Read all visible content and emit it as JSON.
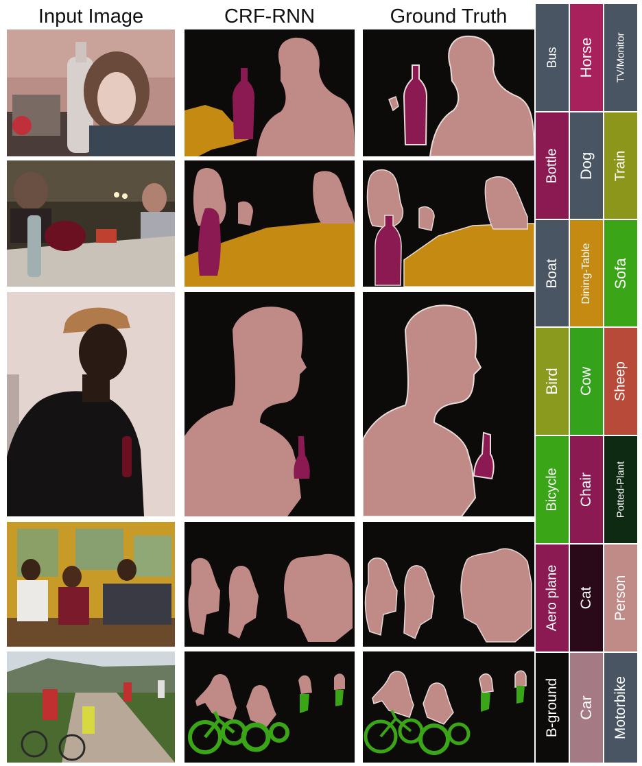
{
  "headers": {
    "input": "Input Image",
    "crf": "CRF-RNN",
    "gt": "Ground Truth"
  },
  "colors": {
    "background": "#0d0a0a",
    "person": "#c08a86",
    "bottle": "#8c1a52",
    "dining_table": "#c48a12",
    "bicycle": "#3aa517"
  },
  "legend": [
    {
      "label": "Bus",
      "color": "#4a5563"
    },
    {
      "label": "Horse",
      "color": "#a8205c"
    },
    {
      "label": "TV/Monitor",
      "color": "#4a5563"
    },
    {
      "label": "Bottle",
      "color": "#8c1a52"
    },
    {
      "label": "Dog",
      "color": "#4a5563"
    },
    {
      "label": "Train",
      "color": "#8c961a"
    },
    {
      "label": "Boat",
      "color": "#4a5563"
    },
    {
      "label": "Dining-Table",
      "color": "#c48a12"
    },
    {
      "label": "Sofa",
      "color": "#3aa517"
    },
    {
      "label": "Bird",
      "color": "#8a9a1e"
    },
    {
      "label": "Cow",
      "color": "#34a21a"
    },
    {
      "label": "Sheep",
      "color": "#b84a3a"
    },
    {
      "label": "Bicycle",
      "color": "#3aa517"
    },
    {
      "label": "Chair",
      "color": "#8c1a52"
    },
    {
      "label": "Potted-Plant",
      "color": "#0f2a12"
    },
    {
      "label": "Aero plane",
      "color": "#8c1a52"
    },
    {
      "label": "Cat",
      "color": "#2a0a18"
    },
    {
      "label": "Person",
      "color": "#c08a86"
    },
    {
      "label": "B-ground",
      "color": "#0d0a0a"
    },
    {
      "label": "Car",
      "color": "#a47a84"
    },
    {
      "label": "Motorbike",
      "color": "#4a5563"
    }
  ]
}
